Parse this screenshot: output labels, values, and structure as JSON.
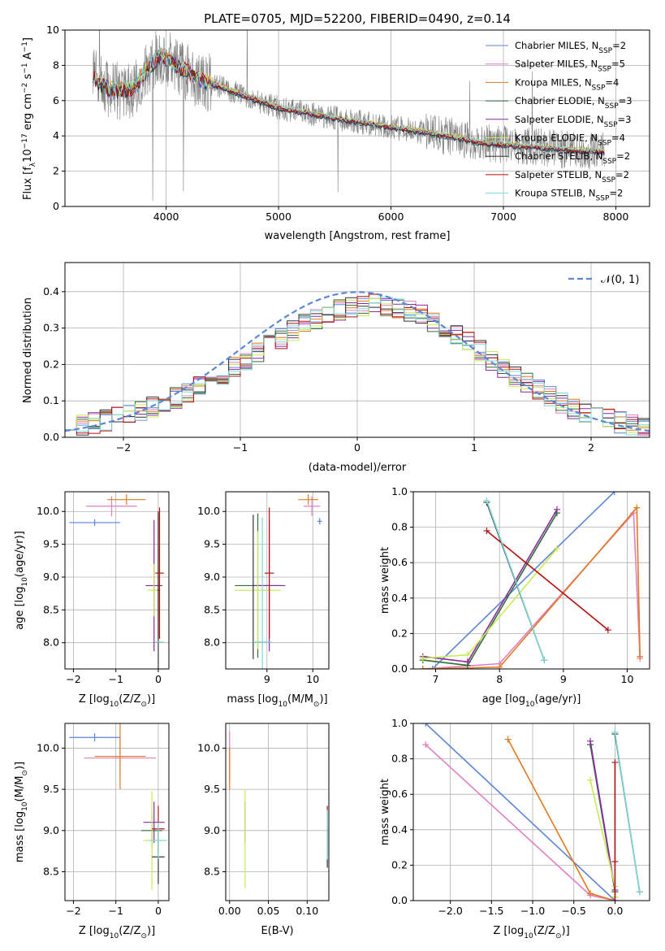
{
  "figure_title": "PLATE=0705, MJD=52200, FIBERID=0490, z=0.14",
  "colors": {
    "Chabrier MILES": "#5b87d9",
    "Salpeter MILES": "#e07fc3",
    "Kroupa MILES": "#e07a1f",
    "Chabrier ELODIE": "#2f6e3a",
    "Salpeter ELODIE": "#8a2aa0",
    "Kroupa ELODIE": "#c8eb55",
    "Chabrier STELIB": "#333333",
    "Salpeter STELIB": "#b30f0f",
    "Kroupa STELIB": "#7fd9d6"
  },
  "chart_data": [
    {
      "id": "spectrum",
      "type": "line",
      "xlabel": "wavelength [Angstrom, rest frame]",
      "ylabel": "Flux [f",
      "ylabel_sub": "λ",
      "ylabel_rest": "10",
      "ylabel_exp": "−17",
      "ylabel_tail": " erg cm",
      "ylabel_exp2": "−2",
      "ylabel_tail2": " s",
      "ylabel_exp3": "−1",
      "ylabel_tail3": " A",
      "ylabel_exp4": "−1",
      "ylabel_end": "]",
      "xlim": [
        3100,
        8300
      ],
      "ylim": [
        0,
        10
      ],
      "xticks": [
        "4000",
        "5000",
        "6000",
        "7000",
        "8000"
      ],
      "yticks": [
        "0",
        "2",
        "4",
        "6",
        "8",
        "10"
      ],
      "legend_position": "top-right",
      "legend": [
        {
          "name": "Chabrier MILES, N",
          "sub": "SSP",
          "tail": "=2"
        },
        {
          "name": "Salpeter MILES, N",
          "sub": "SSP",
          "tail": "=5"
        },
        {
          "name": "Kroupa MILES, N",
          "sub": "SSP",
          "tail": "=4"
        },
        {
          "name": "Chabrier ELODIE, N",
          "sub": "SSP",
          "tail": "=3"
        },
        {
          "name": "Salpeter ELODIE, N",
          "sub": "SSP",
          "tail": "=3"
        },
        {
          "name": "Kroupa ELODIE, N",
          "sub": "SSP",
          "tail": "=4"
        },
        {
          "name": "Chabrier STELIB, N",
          "sub": "SSP",
          "tail": "=2"
        },
        {
          "name": "Salpeter STELIB, N",
          "sub": "SSP",
          "tail": "=2"
        },
        {
          "name": "Kroupa STELIB, N",
          "sub": "SSP",
          "tail": "=2"
        }
      ],
      "continuum_points": [
        [
          3350,
          7.3
        ],
        [
          3500,
          6.6
        ],
        [
          3700,
          6.6
        ],
        [
          3850,
          7.9
        ],
        [
          3950,
          8.6
        ],
        [
          4100,
          8.0
        ],
        [
          4300,
          7.2
        ],
        [
          4600,
          6.5
        ],
        [
          5000,
          5.6
        ],
        [
          5500,
          5.0
        ],
        [
          6000,
          4.5
        ],
        [
          6500,
          4.0
        ],
        [
          6800,
          3.6
        ],
        [
          7200,
          3.4
        ],
        [
          7600,
          3.2
        ],
        [
          7900,
          3.1
        ]
      ]
    },
    {
      "id": "residual_hist",
      "type": "line",
      "xlabel": "(data-model)/error",
      "ylabel": "Normed distribution",
      "xlim": [
        -2.5,
        2.5
      ],
      "ylim": [
        0,
        0.48
      ],
      "xticks": [
        "−2",
        "−1",
        "0",
        "1",
        "2"
      ],
      "yticks": [
        "0.0",
        "0.1",
        "0.2",
        "0.3",
        "0.4"
      ],
      "legend_position": "top-right",
      "legend": [
        {
          "name": "𝒩(0, 1)"
        }
      ]
    },
    {
      "id": "age_vs_Z",
      "type": "scatter",
      "xlabel": "Z [log",
      "xlabel_sub": "10",
      "xlabel_rest": "(Z/Z",
      "xlabel_sub2": "⊙",
      "xlabel_end": ")]",
      "ylabel": "age  [log",
      "ylabel_sub": "10",
      "ylabel_rest": "(age/yr)]",
      "xlim": [
        -2.2,
        0.25
      ],
      "ylim": [
        7.6,
        10.3
      ],
      "xticks": [
        "−2",
        "−1",
        "0"
      ],
      "yticks": [
        "8.0",
        "8.5",
        "9.0",
        "9.5",
        "10.0"
      ],
      "points": [
        {
          "series": "Chabrier MILES",
          "x": -1.5,
          "xerr": 0.6,
          "y": 9.83,
          "yerr": 0.05
        },
        {
          "series": "Salpeter MILES",
          "x": -1.1,
          "xerr": 0.6,
          "y": 10.08,
          "yerr": 0.15
        },
        {
          "series": "Kroupa MILES",
          "x": -0.75,
          "xerr": 0.45,
          "y": 10.18,
          "yerr": 0.08
        },
        {
          "series": "Chabrier ELODIE",
          "x": 0.0,
          "xerr": 0.0,
          "y": 9.0,
          "yerr": 0.95
        },
        {
          "series": "Salpeter ELODIE",
          "x": -0.1,
          "xerr": 0.2,
          "y": 8.87,
          "yerr": 1.0
        },
        {
          "series": "Kroupa ELODIE",
          "x": -0.1,
          "xerr": 0.15,
          "y": 8.8,
          "yerr": 0.4
        },
        {
          "series": "Chabrier STELIB",
          "x": 0.0,
          "xerr": 0.02,
          "y": 8.8,
          "yerr": 1.2
        },
        {
          "series": "Salpeter STELIB",
          "x": 0.03,
          "xerr": 0.1,
          "y": 9.06,
          "yerr": 1.0
        },
        {
          "series": "Kroupa STELIB",
          "x": 0.03,
          "xerr": 0.1,
          "y": 8.01,
          "yerr": 0.01
        }
      ]
    },
    {
      "id": "age_vs_mass",
      "type": "scatter",
      "xlabel": "mass [log",
      "xlabel_sub": "10",
      "xlabel_rest": "(M/M",
      "xlabel_sub2": "⊙",
      "xlabel_end": ")]",
      "xlim": [
        8.1,
        10.35
      ],
      "ylim": [
        7.6,
        10.3
      ],
      "xticks": [
        "9",
        "10"
      ],
      "yticks": [
        "8.0",
        "8.5",
        "9.0",
        "9.5",
        "10.0"
      ],
      "points": [
        {
          "series": "Chabrier MILES",
          "x": 10.15,
          "xerr": 0.05,
          "y": 9.85,
          "yerr": 0.05
        },
        {
          "series": "Salpeter MILES",
          "x": 9.98,
          "xerr": 0.18,
          "y": 10.08,
          "yerr": 0.15
        },
        {
          "series": "Kroupa MILES",
          "x": 9.9,
          "xerr": 0.22,
          "y": 10.18,
          "yerr": 0.08
        },
        {
          "series": "Chabrier ELODIE",
          "x": 8.8,
          "xerr": 0.5,
          "y": 8.87,
          "yerr": 1.1
        },
        {
          "series": "Salpeter ELODIE",
          "x": 9.05,
          "xerr": 0.35,
          "y": 8.87,
          "yerr": 1.0
        },
        {
          "series": "Kroupa ELODIE",
          "x": 8.8,
          "xerr": 0.5,
          "y": 8.8,
          "yerr": 0.9
        },
        {
          "series": "Chabrier STELIB",
          "x": 8.7,
          "xerr": 0.0,
          "y": 8.85,
          "yerr": 1.1
        },
        {
          "series": "Salpeter STELIB",
          "x": 9.05,
          "xerr": 0.1,
          "y": 9.06,
          "yerr": 1.0
        },
        {
          "series": "Kroupa STELIB",
          "x": 8.9,
          "xerr": 0.2,
          "y": 8.01,
          "yerr": 1.9
        }
      ]
    },
    {
      "id": "mass_weight_vs_age",
      "type": "line",
      "xlabel": "age  [log",
      "xlabel_sub": "10",
      "xlabel_rest": "(age/yr)]",
      "ylabel": "mass weight",
      "xlim": [
        6.65,
        10.35
      ],
      "ylim": [
        0,
        1.0
      ],
      "xticks": [
        "7",
        "8",
        "9",
        "10"
      ],
      "yticks": [
        "0.0",
        "0.2",
        "0.4",
        "0.6",
        "0.8",
        "1.0"
      ],
      "series": [
        {
          "name": "Chabrier MILES",
          "points": [
            [
              6.95,
              0.0
            ],
            [
              9.8,
              1.0
            ]
          ]
        },
        {
          "name": "Salpeter MILES",
          "points": [
            [
              6.8,
              0.0
            ],
            [
              8.0,
              0.03
            ],
            [
              10.1,
              0.88
            ],
            [
              10.2,
              0.06
            ]
          ]
        },
        {
          "name": "Kroupa MILES",
          "points": [
            [
              6.8,
              0.0
            ],
            [
              8.0,
              0.01
            ],
            [
              10.15,
              0.91
            ],
            [
              10.2,
              0.07
            ]
          ]
        },
        {
          "name": "Chabrier ELODIE",
          "points": [
            [
              6.8,
              0.05
            ],
            [
              7.5,
              0.02
            ],
            [
              8.9,
              0.88
            ]
          ]
        },
        {
          "name": "Salpeter ELODIE",
          "points": [
            [
              6.8,
              0.07
            ],
            [
              7.5,
              0.04
            ],
            [
              8.9,
              0.9
            ]
          ]
        },
        {
          "name": "Kroupa ELODIE",
          "points": [
            [
              6.8,
              0.06
            ],
            [
              7.5,
              0.08
            ],
            [
              8.9,
              0.68
            ]
          ]
        },
        {
          "name": "Chabrier STELIB",
          "points": [
            [
              7.8,
              0.94
            ],
            [
              8.7,
              0.05
            ]
          ]
        },
        {
          "name": "Salpeter STELIB",
          "points": [
            [
              7.8,
              0.78
            ],
            [
              9.7,
              0.22
            ]
          ]
        },
        {
          "name": "Kroupa STELIB",
          "points": [
            [
              7.8,
              0.95
            ],
            [
              8.7,
              0.05
            ]
          ]
        }
      ]
    },
    {
      "id": "mass_vs_Z",
      "type": "scatter",
      "xlabel": "Z [log",
      "xlabel_sub": "10",
      "xlabel_rest": "(Z/Z",
      "xlabel_sub2": "⊙",
      "xlabel_end": ")]",
      "ylabel": "mass [log",
      "ylabel_sub": "10",
      "ylabel_rest": "(M/M",
      "ylabel_sub2": "⊙",
      "ylabel_end": ")]",
      "xlim": [
        -2.2,
        0.25
      ],
      "ylim": [
        8.15,
        10.3
      ],
      "xticks": [
        "−2",
        "−1",
        "0"
      ],
      "yticks": [
        "8.5",
        "9.0",
        "9.5",
        "10.0"
      ],
      "points": [
        {
          "series": "Chabrier MILES",
          "x": -1.5,
          "xerr": 0.6,
          "y": 10.13,
          "yerr": 0.05
        },
        {
          "series": "Salpeter MILES",
          "x": -0.9,
          "xerr": 0.85,
          "y": 9.88,
          "yerr": 0.25
        },
        {
          "series": "Kroupa MILES",
          "x": -0.9,
          "xerr": 0.6,
          "y": 9.9,
          "yerr": 0.4
        },
        {
          "series": "Chabrier ELODIE",
          "x": -0.15,
          "xerr": 0.25,
          "y": 9.0,
          "yerr": 0.2
        },
        {
          "series": "Salpeter ELODIE",
          "x": -0.1,
          "xerr": 0.25,
          "y": 9.1,
          "yerr": 0.25
        },
        {
          "series": "Kroupa ELODIE",
          "x": -0.15,
          "xerr": 0.2,
          "y": 8.88,
          "yerr": 0.6
        },
        {
          "series": "Chabrier STELIB",
          "x": 0.0,
          "xerr": 0.15,
          "y": 8.68,
          "yerr": 0.33
        },
        {
          "series": "Salpeter STELIB",
          "x": 0.0,
          "xerr": 0.15,
          "y": 9.02,
          "yerr": 0.28
        },
        {
          "series": "Kroupa STELIB",
          "x": 0.0,
          "xerr": 0.2,
          "y": 8.88,
          "yerr": 0.22
        }
      ]
    },
    {
      "id": "mass_vs_ebv",
      "type": "scatter",
      "xlabel": "E(B-V)",
      "xlim": [
        -0.005,
        0.128
      ],
      "ylim": [
        8.15,
        10.3
      ],
      "xticks": [
        "0.00",
        "0.05",
        "0.10"
      ],
      "yticks": [
        "8.5",
        "9.0",
        "9.5",
        "10.0"
      ],
      "points": [
        {
          "series": "Salpeter MILES",
          "x": 0.0,
          "xerr": 0.0,
          "y": 9.9,
          "yerr": 0.3
        },
        {
          "series": "Kroupa MILES",
          "x": 0.0,
          "xerr": 0.0,
          "y": 9.75,
          "yerr": 0.25
        },
        {
          "series": "Salpeter ELODIE",
          "x": 0.02,
          "xerr": 0.0,
          "y": 9.1,
          "yerr": 0.25
        },
        {
          "series": "Kroupa ELODIE",
          "x": 0.02,
          "xerr": 0.0,
          "y": 8.9,
          "yerr": 0.6
        },
        {
          "series": "Chabrier STELIB",
          "x": 0.126,
          "xerr": 0.0,
          "y": 8.8,
          "yerr": 0.25
        },
        {
          "series": "Salpeter STELIB",
          "x": 0.126,
          "xerr": 0.0,
          "y": 9.0,
          "yerr": 0.3
        },
        {
          "series": "Kroupa STELIB",
          "x": 0.126,
          "xerr": 0.0,
          "y": 8.95,
          "yerr": 0.3
        }
      ]
    },
    {
      "id": "mass_weight_vs_Z",
      "type": "line",
      "xlabel": "Z [log",
      "xlabel_sub": "10",
      "xlabel_rest": "(Z/Z",
      "xlabel_sub2": "⊙",
      "xlabel_end": ")]",
      "ylabel": "mass weight",
      "xlim": [
        -2.45,
        0.42
      ],
      "ylim": [
        0,
        1.0
      ],
      "xticks": [
        "−2.0",
        "−1.5",
        "−1.0",
        "−0.5",
        "0.0"
      ],
      "yticks": [
        "0.0",
        "0.2",
        "0.4",
        "0.6",
        "0.8",
        "1.0"
      ],
      "series": [
        {
          "name": "Chabrier MILES",
          "points": [
            [
              -2.3,
              1.0
            ],
            [
              0.0,
              0.0
            ]
          ]
        },
        {
          "name": "Salpeter MILES",
          "points": [
            [
              -2.3,
              0.88
            ],
            [
              -0.3,
              0.03
            ],
            [
              0.0,
              0.0
            ]
          ]
        },
        {
          "name": "Kroupa MILES",
          "points": [
            [
              -1.3,
              0.91
            ],
            [
              -0.3,
              0.04
            ],
            [
              0.0,
              0.0
            ]
          ]
        },
        {
          "name": "Chabrier ELODIE",
          "points": [
            [
              -0.3,
              0.88
            ],
            [
              0.0,
              0.05
            ],
            [
              0.0,
              0.02
            ]
          ]
        },
        {
          "name": "Salpeter ELODIE",
          "points": [
            [
              -0.3,
              0.9
            ],
            [
              0.0,
              0.06
            ]
          ]
        },
        {
          "name": "Kroupa ELODIE",
          "points": [
            [
              -0.3,
              0.68
            ],
            [
              0.0,
              0.08
            ],
            [
              0.0,
              0.02
            ]
          ]
        },
        {
          "name": "Chabrier STELIB",
          "points": [
            [
              0.0,
              0.94
            ],
            [
              0.3,
              0.05
            ]
          ]
        },
        {
          "name": "Salpeter STELIB",
          "points": [
            [
              0.0,
              0.78
            ],
            [
              0.0,
              0.22
            ],
            [
              0.0,
              0.0
            ]
          ]
        },
        {
          "name": "Kroupa STELIB",
          "points": [
            [
              0.0,
              0.95
            ],
            [
              0.3,
              0.05
            ]
          ]
        }
      ]
    }
  ]
}
